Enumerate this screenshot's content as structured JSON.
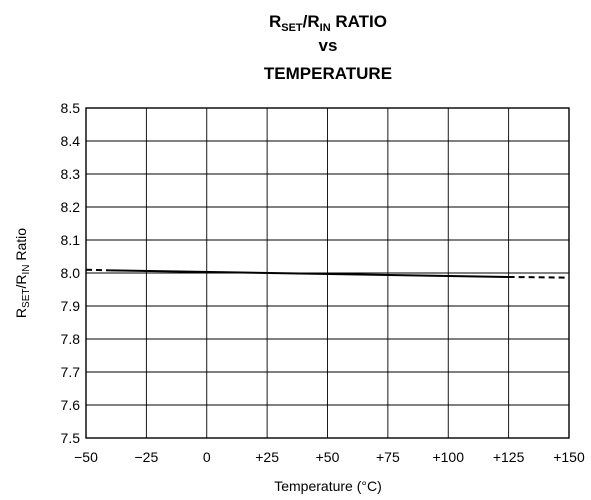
{
  "chart_data": {
    "type": "line",
    "title": {
      "line1": {
        "r1": "R",
        "r1_sub": "SET",
        "sep": "/R",
        "r2_sub": "IN",
        "rest": " RATIO"
      },
      "line2": "vs",
      "line3": "TEMPERATURE"
    },
    "xlabel": "Temperature (°C)",
    "ylabel": {
      "r1": "R",
      "r1_sub": "SET",
      "sep": "/R",
      "r2_sub": "IN",
      "rest": " Ratio"
    },
    "xlim": [
      -50,
      150
    ],
    "ylim": [
      7.5,
      8.5
    ],
    "x_ticks": [
      -50,
      -25,
      0,
      25,
      50,
      75,
      100,
      125,
      150
    ],
    "x_tick_labels": [
      "−50",
      "−25",
      "0",
      "+25",
      "+50",
      "+75",
      "+100",
      "+125",
      "+150"
    ],
    "y_ticks": [
      7.5,
      7.6,
      7.7,
      7.8,
      7.9,
      8.0,
      8.1,
      8.2,
      8.3,
      8.4,
      8.5
    ],
    "y_tick_labels": [
      "7.5",
      "7.6",
      "7.7",
      "7.8",
      "7.9",
      "8.0",
      "8.1",
      "8.2",
      "8.3",
      "8.4",
      "8.5"
    ],
    "grid": true,
    "series": [
      {
        "style": "solid",
        "x": [
          -40,
          125
        ],
        "y": [
          8.008,
          7.988
        ]
      },
      {
        "style": "dashed",
        "x": [
          -50,
          -40
        ],
        "y": [
          8.01,
          8.008
        ]
      },
      {
        "style": "dashed",
        "x": [
          125,
          150
        ],
        "y": [
          7.988,
          7.986
        ]
      }
    ]
  }
}
